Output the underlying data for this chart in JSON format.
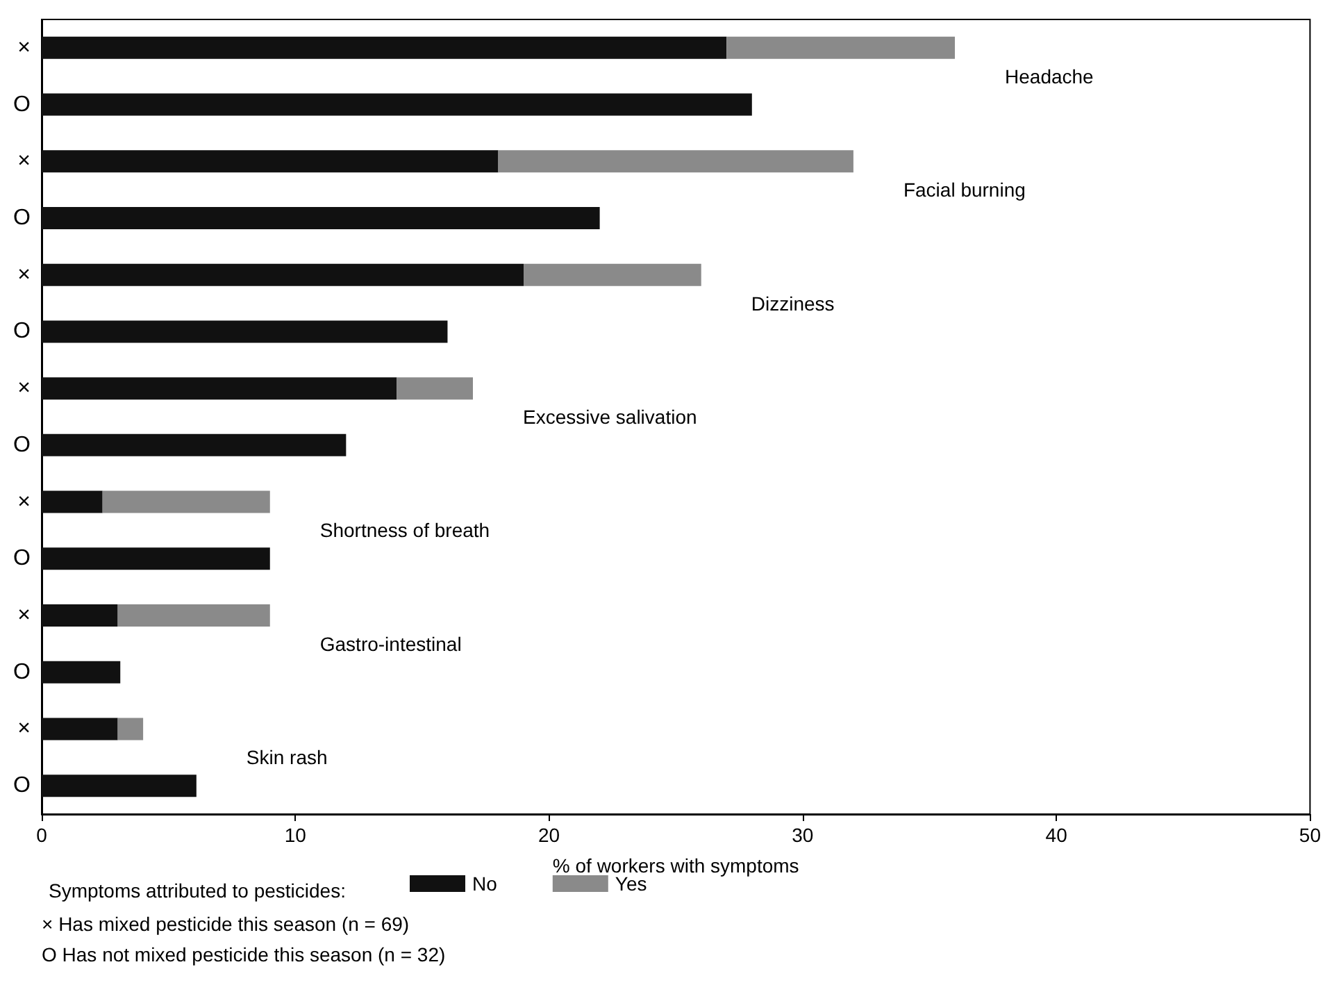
{
  "chart_data": {
    "type": "bar",
    "orientation": "horizontal",
    "stacked": true,
    "categories": [
      "×",
      "O",
      "×",
      "O",
      "×",
      "O",
      "×",
      "O",
      "×",
      "O",
      "×",
      "O",
      "×",
      "O"
    ],
    "series": [
      {
        "name": "No",
        "color": "#111111",
        "values": [
          27,
          28,
          18,
          22,
          19,
          16,
          14,
          12,
          2.4,
          9,
          3,
          3.1,
          3,
          6.1
        ]
      },
      {
        "name": "Yes",
        "color": "#8a8a8a",
        "values": [
          9,
          0,
          14,
          0,
          7,
          0,
          3,
          0,
          6.6,
          0,
          6,
          0,
          1,
          0
        ]
      }
    ],
    "xlabel": "% of workers with symptoms",
    "legend_title": "Symptoms attributed to pesticides:",
    "xlim": [
      0,
      50
    ],
    "xticks": [
      0,
      10,
      20,
      30,
      40,
      50
    ],
    "grid": false,
    "legend": "bottom",
    "annotations": [
      "Headache",
      "Facial burning",
      "Dizziness",
      "Excessive salivation",
      "Shortness of breath",
      "Gastro-intestinal",
      "Skin rash",
      "× Has mixed pesticide this season (n = 69)",
      "O Has not mixed pesticide this season (n = 32)"
    ]
  }
}
